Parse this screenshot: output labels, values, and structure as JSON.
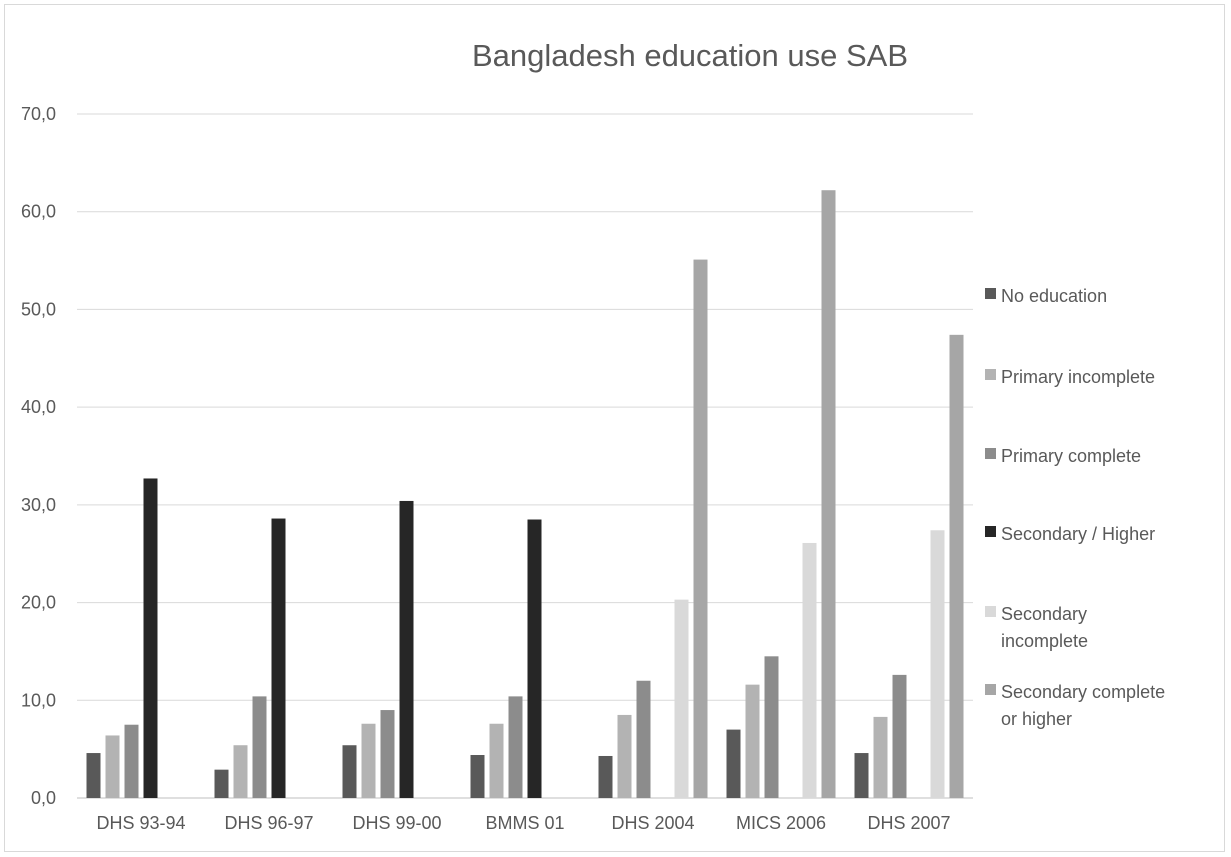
{
  "chart_data": {
    "type": "bar",
    "title": "Bangladesh education use SAB",
    "xlabel": "",
    "ylabel": "",
    "ylim": [
      0,
      70
    ],
    "yticks": [
      "0,0",
      "10,0",
      "20,0",
      "30,0",
      "40,0",
      "50,0",
      "60,0",
      "70,0"
    ],
    "grid": true,
    "legend_position": "right",
    "categories": [
      "DHS 93-94",
      "DHS 96-97",
      "DHS 99-00",
      "BMMS 01",
      "DHS 2004",
      "MICS 2006",
      "DHS 2007"
    ],
    "series": [
      {
        "name": "No education",
        "color": "#595959",
        "values": [
          4.6,
          2.9,
          5.4,
          4.4,
          4.3,
          7.0,
          4.6
        ]
      },
      {
        "name": "Primary incomplete",
        "color": "#b3b3b3",
        "values": [
          6.4,
          5.4,
          7.6,
          7.6,
          8.5,
          11.6,
          8.3
        ]
      },
      {
        "name": "Primary complete",
        "color": "#8c8c8c",
        "values": [
          7.5,
          10.4,
          9.0,
          10.4,
          12.0,
          14.5,
          12.6
        ]
      },
      {
        "name": "Secondary / Higher",
        "color": "#262626",
        "values": [
          32.7,
          28.6,
          30.4,
          28.5,
          null,
          null,
          null
        ]
      },
      {
        "name": "Secondary incomplete",
        "label_lines": [
          "Secondary",
          "incomplete"
        ],
        "color": "#d9d9d9",
        "values": [
          null,
          null,
          null,
          null,
          20.3,
          26.1,
          27.4
        ]
      },
      {
        "name": "Secondary complete or higher",
        "label_lines": [
          "Secondary complete",
          "or higher"
        ],
        "color": "#a6a6a6",
        "values": [
          null,
          null,
          null,
          null,
          55.1,
          62.2,
          47.4
        ]
      }
    ]
  }
}
